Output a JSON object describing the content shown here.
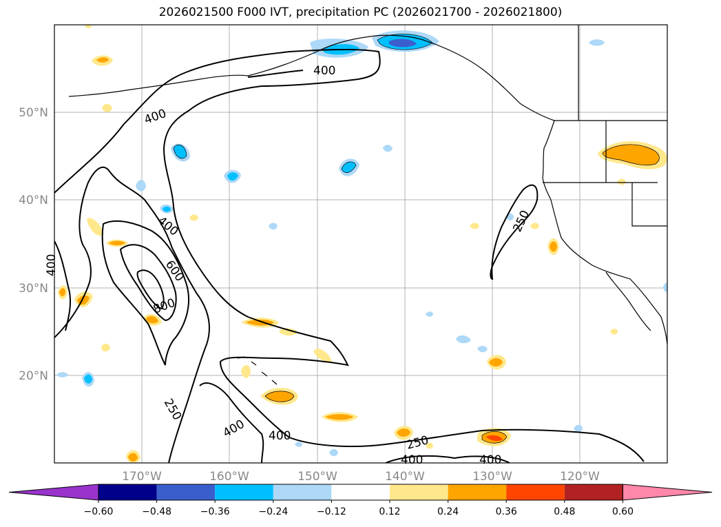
{
  "title": "2026021500 F000 IVT, precipitation PC (2026021700 - 2026021800)",
  "map": {
    "lat_labels": [
      "50°N",
      "40°N",
      "30°N",
      "20°N"
    ],
    "lon_labels": [
      "170°W",
      "160°W",
      "150°W",
      "140°W",
      "130°W",
      "120°W"
    ],
    "contour_labels": [
      "400",
      "400",
      "400",
      "600",
      "800",
      "400",
      "250",
      "400",
      "400",
      "250",
      "400",
      "400",
      "250"
    ]
  },
  "colorbar": {
    "ticks": [
      "−0.60",
      "−0.48",
      "−0.36",
      "−0.24",
      "−0.12",
      "0.12",
      "0.24",
      "0.36",
      "0.48",
      "0.60"
    ],
    "colors": [
      "#9933cc",
      "#00008b",
      "#3a5fcd",
      "#00bfff",
      "#add8f7",
      "#ffffff",
      "#ffe88c",
      "#ffa500",
      "#ff4500",
      "#b22222",
      "#ff88aa"
    ]
  }
}
